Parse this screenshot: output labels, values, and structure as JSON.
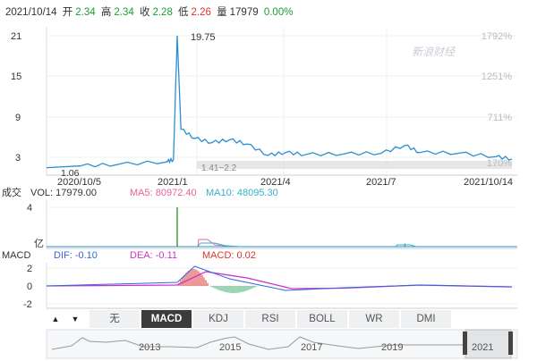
{
  "info_bar": {
    "date": "2021/10/14",
    "open_label": "开",
    "open": "2.34",
    "high_label": "高",
    "high": "2.34",
    "close_label": "收",
    "close": "2.28",
    "low_label": "低",
    "low": "2.26",
    "volume_label": "量",
    "volume": "17979",
    "change": "0.00%"
  },
  "watermark": "新浪财经",
  "price_panel": {
    "peak_label": "19.75",
    "low_label": "1.06",
    "range_label": "1.41~2.2",
    "y_ticks": [
      "21",
      "15",
      "9",
      "3"
    ],
    "pct_ticks": [
      "1792%",
      "1251%",
      "711%",
      "170%"
    ]
  },
  "volume_panel": {
    "label": "成交",
    "vol_label": "VOL: 17979.00",
    "ma5_label": "MA5: 80972.40",
    "ma10_label": "MA10: 48095.30",
    "y_top": "4",
    "unit": "亿"
  },
  "macd_panel": {
    "name": "MACD",
    "dif_label": "DIF: -0.10",
    "dea_label": "DEA: -0.11",
    "macd_label": "MACD: 0.02",
    "y_ticks": [
      "2",
      "0",
      "-2"
    ]
  },
  "tabs": [
    "无",
    "MACD",
    "KDJ",
    "RSI",
    "BOLL",
    "WR",
    "DMI"
  ],
  "active_tab": "MACD",
  "navigator": {
    "years": [
      "2013",
      "2015",
      "2017",
      "2019",
      "2021"
    ]
  },
  "colors": {
    "price": "#2a8fd0",
    "vol": "#3a9f3a",
    "ma5": "#e8629a",
    "ma10": "#33b3c8",
    "dif": "#3366dd",
    "dea": "#cc33cc",
    "macd_pos": "#d9352f",
    "macd_neg": "#3aa86a"
  },
  "chart_data": [
    {
      "type": "line",
      "title": "",
      "x_ticks": [
        "2020/10/5",
        "2021/1",
        "2021/4",
        "2021/7",
        "2021/10/14"
      ],
      "ylim": [
        0,
        21
      ],
      "points": [
        {
          "x": "2020/10/5",
          "y": 1.06
        },
        {
          "x": "2020/11/1",
          "y": 1.3
        },
        {
          "x": "2020/12/1",
          "y": 1.5
        },
        {
          "x": "2021/1/10",
          "y": 1.9
        },
        {
          "x": "2021/1/15",
          "y": 2.2
        },
        {
          "x": "2021/1/18",
          "y": 19.75
        },
        {
          "x": "2021/1/21",
          "y": 6.5
        },
        {
          "x": "2021/2/1",
          "y": 5.2
        },
        {
          "x": "2021/2/15",
          "y": 4.6
        },
        {
          "x": "2021/3/1",
          "y": 5.0
        },
        {
          "x": "2021/3/15",
          "y": 4.4
        },
        {
          "x": "2021/4/1",
          "y": 2.8
        },
        {
          "x": "2021/4/15",
          "y": 3.2
        },
        {
          "x": "2021/5/1",
          "y": 2.9
        },
        {
          "x": "2021/6/1",
          "y": 3.0
        },
        {
          "x": "2021/7/1",
          "y": 3.1
        },
        {
          "x": "2021/7/20",
          "y": 4.2
        },
        {
          "x": "2021/8/1",
          "y": 3.2
        },
        {
          "x": "2021/9/1",
          "y": 3.1
        },
        {
          "x": "2021/10/1",
          "y": 2.6
        },
        {
          "x": "2021/10/14",
          "y": 2.28
        }
      ]
    },
    {
      "type": "bar",
      "title": "VOL",
      "ylim": [
        0,
        4
      ],
      "points": [
        {
          "x": "2021/1/18",
          "y": 4.0
        },
        {
          "x": "2021/1/21",
          "y": 0.5
        },
        {
          "x": "2021/7/20",
          "y": 0.3
        }
      ]
    },
    {
      "type": "line",
      "title": "MACD",
      "ylim": [
        -2,
        2
      ],
      "series": [
        {
          "name": "DIF",
          "points": [
            {
              "x": "2020/10/5",
              "y": 0
            },
            {
              "x": "2021/1/18",
              "y": 0.4
            },
            {
              "x": "2021/2/1",
              "y": 2.2
            },
            {
              "x": "2021/3/1",
              "y": 0.8
            },
            {
              "x": "2021/4/15",
              "y": -0.5
            },
            {
              "x": "2021/6/1",
              "y": -0.2
            },
            {
              "x": "2021/8/1",
              "y": 0.1
            },
            {
              "x": "2021/10/14",
              "y": -0.1
            }
          ]
        },
        {
          "name": "DEA",
          "points": [
            {
              "x": "2020/10/5",
              "y": 0
            },
            {
              "x": "2021/1/18",
              "y": 0.1
            },
            {
              "x": "2021/2/10",
              "y": 1.6
            },
            {
              "x": "2021/3/15",
              "y": 0.9
            },
            {
              "x": "2021/4/20",
              "y": -0.3
            },
            {
              "x": "2021/6/1",
              "y": -0.25
            },
            {
              "x": "2021/8/1",
              "y": 0.1
            },
            {
              "x": "2021/10/14",
              "y": -0.11
            }
          ]
        }
      ]
    }
  ]
}
